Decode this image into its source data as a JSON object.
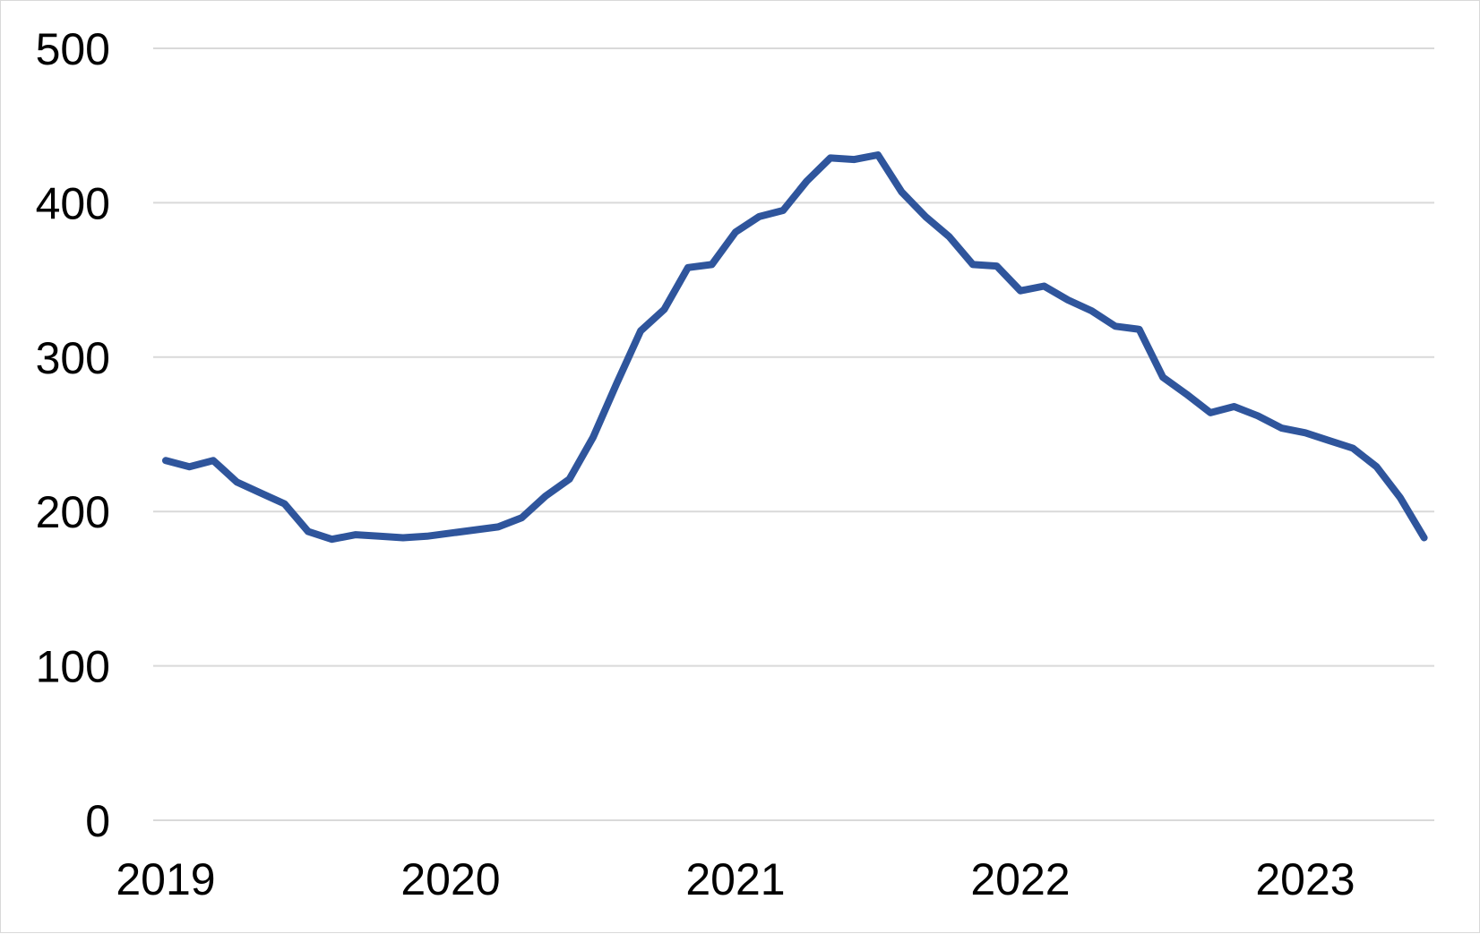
{
  "chart_data": {
    "type": "line",
    "title": "",
    "xlabel": "",
    "ylabel": "",
    "xlim": [
      2019.0,
      2023.5
    ],
    "ylim": [
      0,
      500
    ],
    "yticks": [
      0,
      100,
      200,
      300,
      400,
      500
    ],
    "xticks": [
      2019,
      2020,
      2021,
      2022,
      2023
    ],
    "ytick_labels": [
      "0",
      "100",
      "200",
      "300",
      "400",
      "500"
    ],
    "xtick_labels": [
      "2019",
      "2020",
      "2021",
      "2022",
      "2023"
    ],
    "grid": "horizontal",
    "legend": "none",
    "series": [
      {
        "color": "#2f559c",
        "x": [
          2019.0,
          2019.083,
          2019.167,
          2019.25,
          2019.333,
          2019.417,
          2019.5,
          2019.583,
          2019.667,
          2019.75,
          2019.833,
          2019.917,
          2020.0,
          2020.083,
          2020.167,
          2020.25,
          2020.333,
          2020.417,
          2020.5,
          2020.583,
          2020.667,
          2020.75,
          2020.833,
          2020.917,
          2021.0,
          2021.083,
          2021.167,
          2021.25,
          2021.333,
          2021.417,
          2021.5,
          2021.583,
          2021.667,
          2021.75,
          2021.833,
          2021.917,
          2022.0,
          2022.083,
          2022.167,
          2022.25,
          2022.333,
          2022.417,
          2022.5,
          2022.583,
          2022.667,
          2022.75,
          2022.833,
          2022.917,
          2023.0,
          2023.083,
          2023.167,
          2023.25,
          2023.333,
          2023.417
        ],
        "y": [
          233,
          229,
          233,
          219,
          212,
          205,
          187,
          182,
          185,
          184,
          183,
          184,
          186,
          188,
          190,
          196,
          210,
          221,
          248,
          283,
          317,
          331,
          358,
          360,
          381,
          391,
          395,
          414,
          429,
          428,
          431,
          407,
          391,
          378,
          360,
          359,
          343,
          346,
          337,
          330,
          320,
          318,
          287,
          276,
          264,
          268,
          262,
          254,
          251,
          246,
          241,
          229,
          209,
          183
        ]
      }
    ]
  }
}
